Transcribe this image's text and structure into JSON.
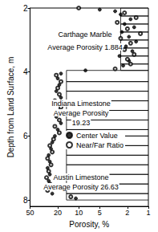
{
  "chart_data": {
    "type": "scatter",
    "x_label": "Porosity, %",
    "y_label": "Depth from Land Surface, m",
    "log": "x",
    "grid": false,
    "legend": "center",
    "xlim": [
      50,
      1
    ],
    "xticks": [
      50,
      20,
      10,
      5,
      2,
      1
    ],
    "ylim": [
      2,
      8.2
    ],
    "yticks": [
      2,
      4,
      6,
      8
    ],
    "series": [
      {
        "name": "Center Value",
        "color": "#000000",
        "marker": "circle",
        "x": [
          5,
          3,
          2.5,
          1.8,
          2.2,
          1.6,
          2.4,
          1.9,
          1.5,
          2.1,
          1.7,
          2.6,
          1.9,
          2.3,
          8,
          18,
          20,
          19,
          21,
          18,
          20,
          19,
          21,
          18,
          20,
          22,
          24,
          25,
          27,
          26,
          28,
          26,
          27,
          25,
          24,
          11
        ],
        "values": [
          2.05,
          2.1,
          2.2,
          2.35,
          2.5,
          2.6,
          2.75,
          2.9,
          3.05,
          3.2,
          3.35,
          3.5,
          3.65,
          3.8,
          3.95,
          4.05,
          4.2,
          4.4,
          4.6,
          4.8,
          5.0,
          5.2,
          5.4,
          5.6,
          5.8,
          6.0,
          6.2,
          6.4,
          6.6,
          6.8,
          7.0,
          7.2,
          7.4,
          7.6,
          7.8,
          7.95
        ]
      },
      {
        "name": "Near/Far Ratio",
        "color": "#000000",
        "marker": "emptyCircle",
        "x": [
          10,
          2.2,
          1.5,
          2.8,
          2.0,
          1.3,
          2.5,
          1.8,
          2.2,
          1.6,
          2.0,
          1.8,
          3,
          21,
          18,
          20,
          19,
          22,
          18,
          20,
          19,
          22,
          19,
          23,
          26,
          24,
          28,
          25,
          27,
          29,
          26,
          28,
          13
        ],
        "values": [
          2.0,
          2.15,
          2.3,
          2.45,
          2.65,
          2.8,
          2.95,
          3.1,
          3.3,
          3.45,
          3.6,
          3.75,
          3.9,
          4.1,
          4.3,
          4.5,
          4.7,
          4.9,
          5.1,
          5.3,
          5.5,
          5.7,
          5.9,
          6.1,
          6.3,
          6.5,
          6.7,
          6.9,
          7.1,
          7.3,
          7.5,
          7.7,
          7.9
        ]
      }
    ],
    "layer_depths": [
      2.0,
      2.25,
      2.5,
      2.75,
      3.0,
      3.25,
      3.5,
      3.75,
      3.95,
      4.3,
      4.6,
      4.9,
      5.2,
      5.5,
      5.8,
      6.0,
      6.3,
      6.6,
      6.9,
      7.2,
      7.5,
      7.8,
      8.0
    ],
    "layer_porosity": [
      2.5,
      2.5,
      2.5,
      2.5,
      2.5,
      2.5,
      2.5,
      2.5,
      15,
      15,
      15,
      15,
      15,
      15,
      15,
      15,
      15,
      15,
      15,
      15,
      15,
      15
    ],
    "annotations": [
      {
        "text": "Carthage Marble"
      },
      {
        "text": "Average Porosity 1.884"
      },
      {
        "text": "Indiana Limestone"
      },
      {
        "text": "Average Porosity"
      },
      {
        "text": "19.23"
      },
      {
        "text": "Austin Limestone"
      },
      {
        "text": "Average Porosity 26.63"
      }
    ]
  }
}
